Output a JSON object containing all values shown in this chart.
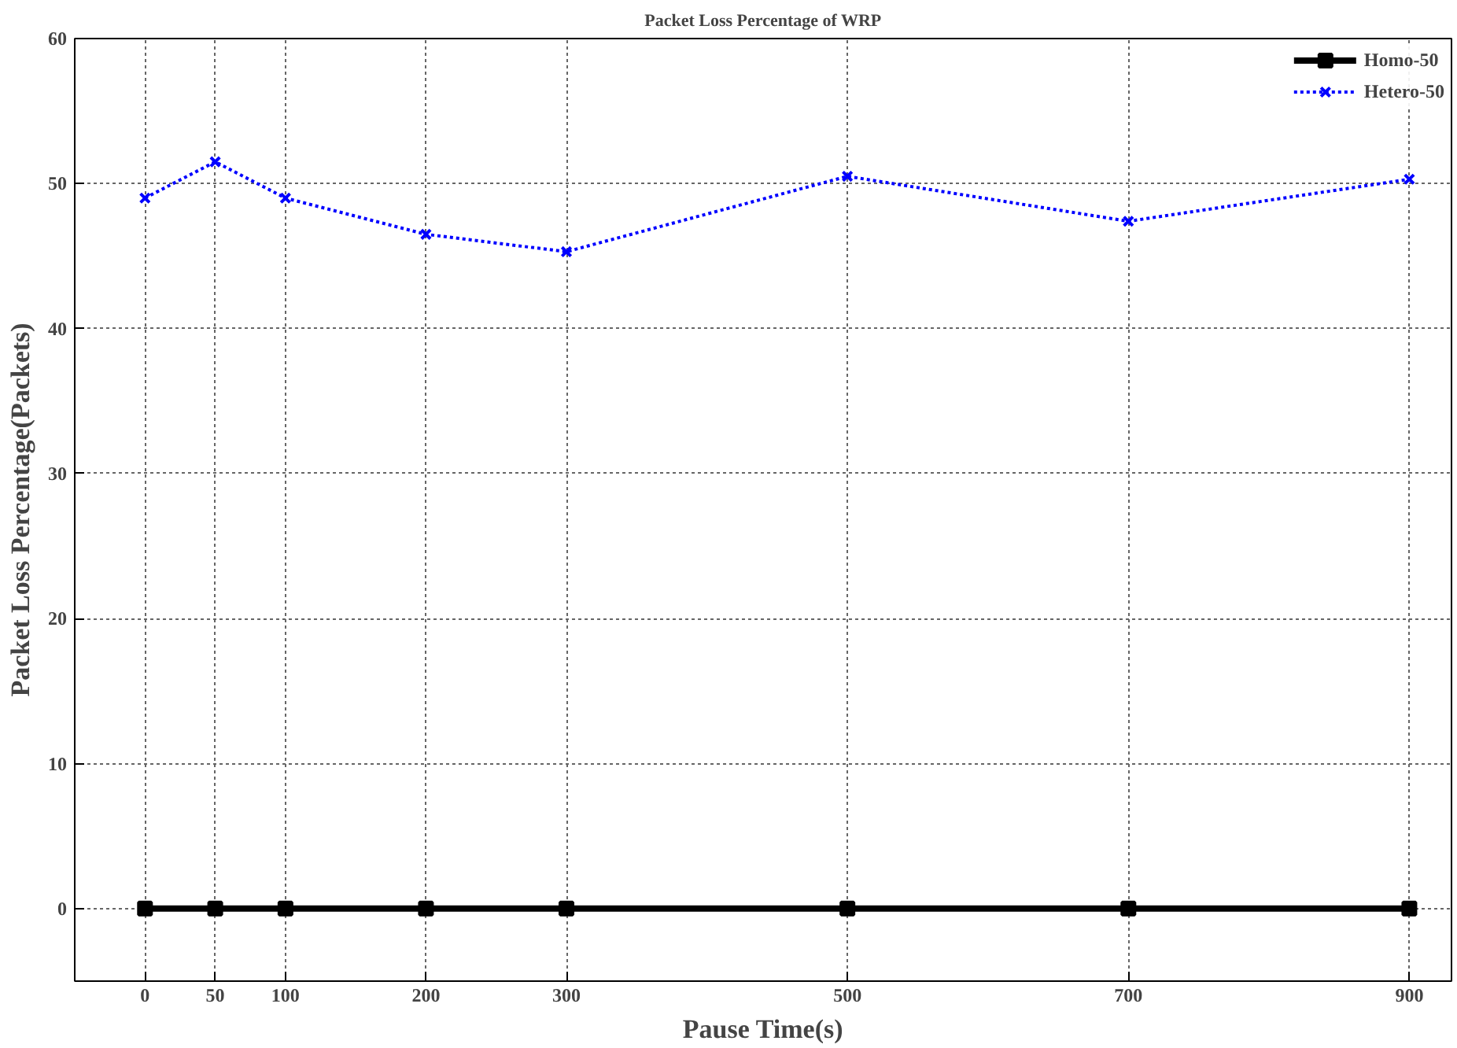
{
  "chart_data": {
    "type": "line",
    "title": "Packet Loss Percentage of WRP",
    "xlabel": "Pause Time(s)",
    "ylabel": "Packet Loss Percentage(Packets)",
    "x": [
      0,
      50,
      100,
      200,
      300,
      500,
      700,
      900
    ],
    "series": [
      {
        "name": "Homo-50",
        "color": "#000000",
        "values": [
          0,
          0,
          0,
          0,
          0,
          0,
          0,
          0
        ],
        "marker": "square",
        "line_style": "solid"
      },
      {
        "name": "Hetero-50",
        "color": "#0000ff",
        "values": [
          49.0,
          51.5,
          49.0,
          46.5,
          45.3,
          50.5,
          47.4,
          50.3
        ],
        "marker": "cross",
        "line_style": "dotted"
      }
    ],
    "xlim": [
      -50,
      930
    ],
    "xticks": [
      0,
      50,
      100,
      200,
      300,
      500,
      700,
      900
    ],
    "ylim": [
      -5,
      60
    ],
    "yticks": [
      0,
      10,
      20,
      30,
      40,
      50,
      60
    ],
    "grid": true,
    "legend": "top right"
  }
}
